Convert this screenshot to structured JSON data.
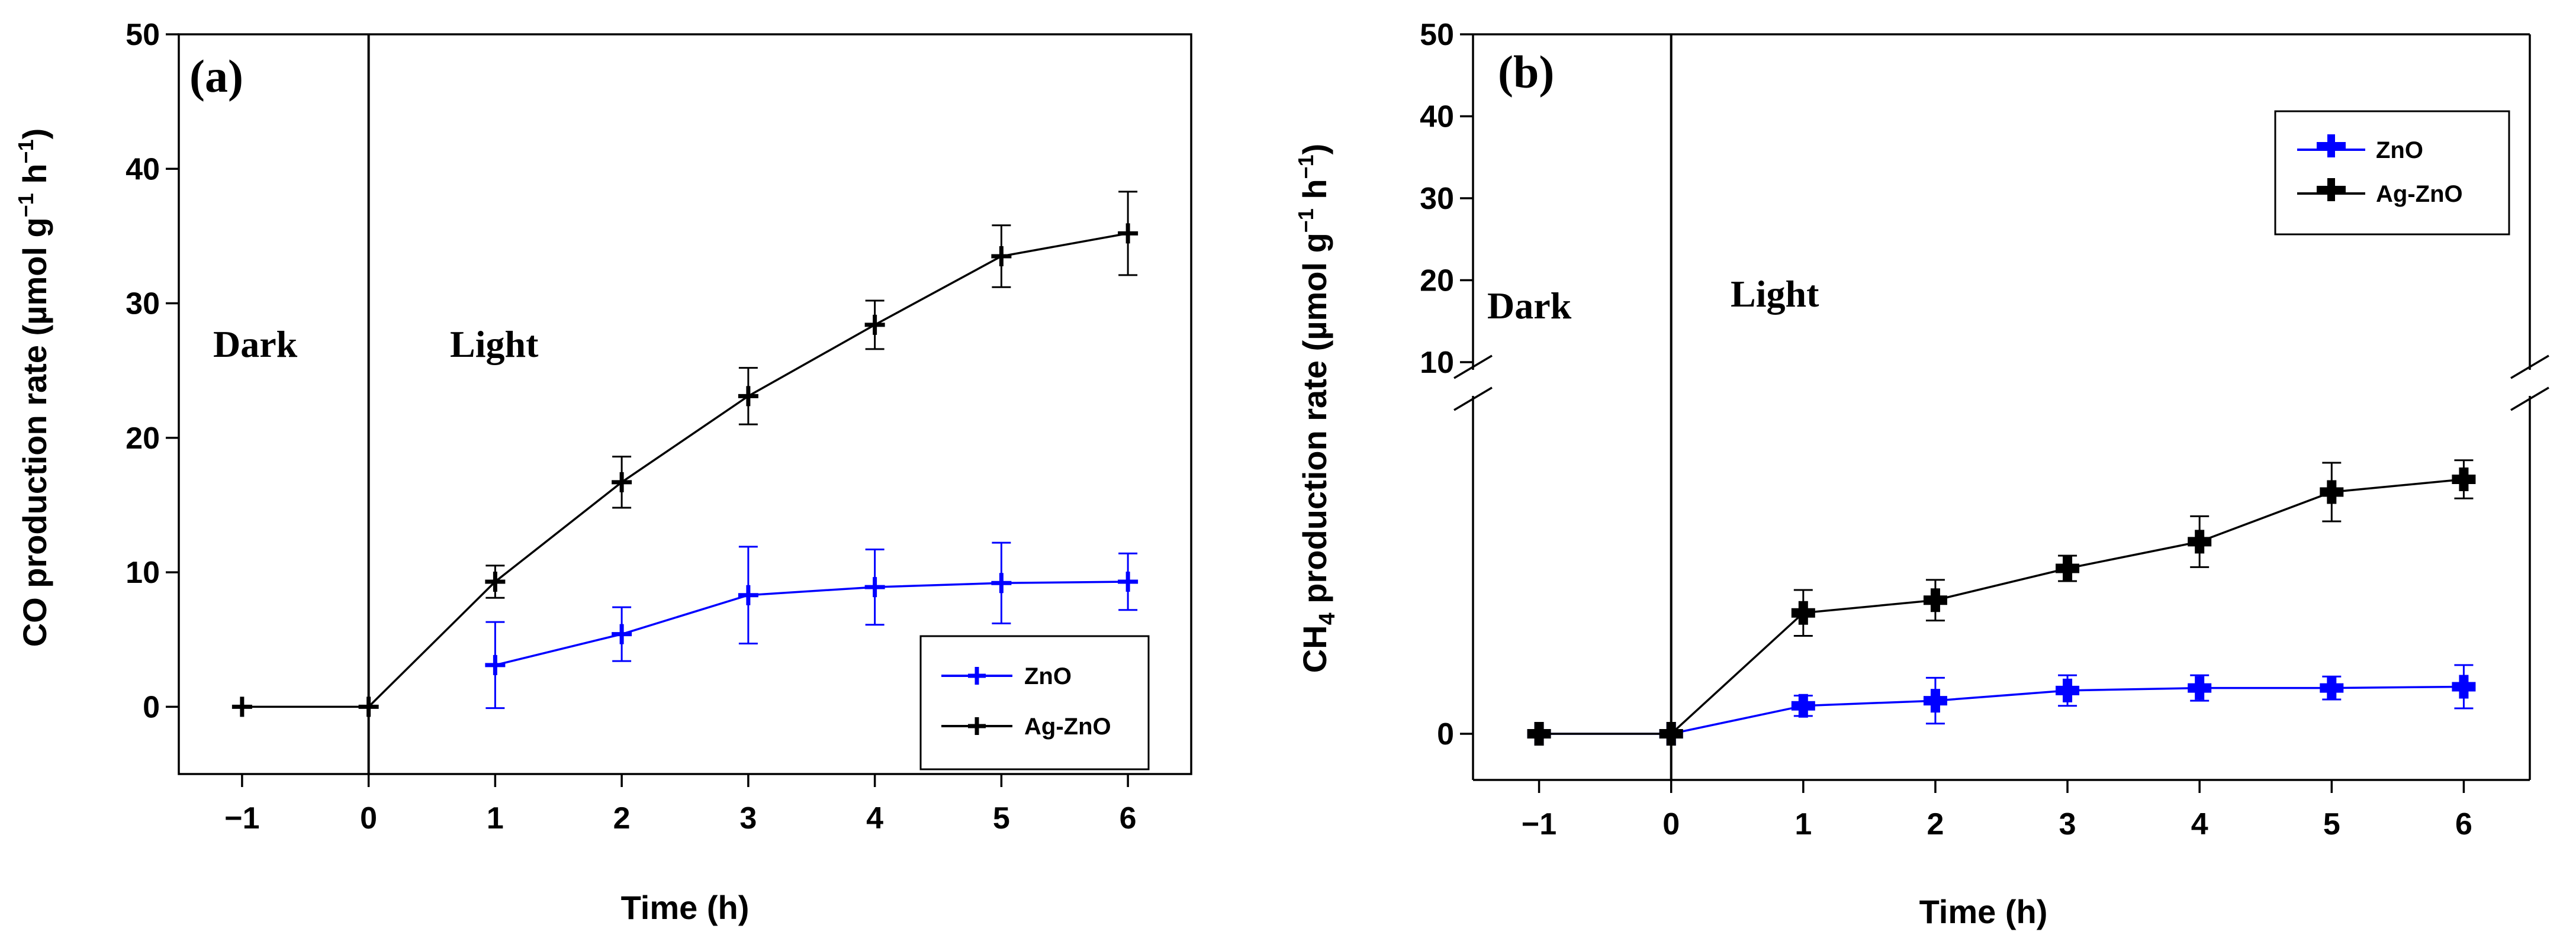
{
  "chart_data": [
    {
      "type": "line",
      "panel_label": "(a)",
      "xlabel": "Time (h)",
      "ylabel_main": "CO production rate (µmol g",
      "ylabel_sup1": "−1",
      "ylabel_mid": " h",
      "ylabel_sup2": "−1",
      "ylabel_end": ")",
      "xlim": [
        -1.5,
        6.5
      ],
      "ylim": [
        -5,
        50
      ],
      "x_ticks": [
        -1,
        0,
        1,
        2,
        3,
        4,
        5,
        6
      ],
      "x_tick_labels": [
        "−1",
        "0",
        "1",
        "2",
        "3",
        "4",
        "5",
        "6"
      ],
      "y_ticks": [
        0,
        10,
        20,
        30,
        40,
        50
      ],
      "y_tick_labels": [
        "0",
        "10",
        "20",
        "30",
        "40",
        "50"
      ],
      "annotations": [
        {
          "text": "Dark",
          "x": -1.0,
          "y": 26.5
        },
        {
          "text": "Light",
          "x": 1.35,
          "y": 26.5
        }
      ],
      "divider_x": 0,
      "legend": {
        "position": "lower-right",
        "entries": [
          "ZnO",
          "Ag-ZnO"
        ]
      },
      "series": [
        {
          "name": "ZnO",
          "color": "#0000ff",
          "marker": "plus",
          "x": [
            1,
            2,
            3,
            4,
            5,
            6
          ],
          "y": [
            3.1,
            5.4,
            8.3,
            8.9,
            9.2,
            9.3
          ],
          "err": [
            3.2,
            2.0,
            3.6,
            2.8,
            3.0,
            2.1
          ]
        },
        {
          "name": "Ag-ZnO",
          "color": "#000000",
          "marker": "plus",
          "x": [
            -1,
            0,
            1,
            2,
            3,
            4,
            5,
            6
          ],
          "y": [
            0,
            0,
            9.3,
            16.7,
            23.1,
            28.4,
            33.5,
            35.2
          ],
          "err": [
            0,
            0,
            1.2,
            1.9,
            2.1,
            1.8,
            2.3,
            3.1
          ]
        }
      ]
    },
    {
      "type": "line",
      "panel_label": "(b)",
      "xlabel": "Time (h)",
      "ylabel_pre": "CH",
      "ylabel_sub": "4",
      "ylabel_main": " production rate (µmol g",
      "ylabel_sup1": "−1",
      "ylabel_mid": " h",
      "ylabel_sup2": "−1",
      "ylabel_end": ")",
      "xlim": [
        -1.5,
        6.5
      ],
      "y_axis_break": true,
      "y_ticks_upper": [
        10,
        20,
        30,
        40,
        50
      ],
      "y_tick_labels_upper": [
        "10",
        "20",
        "30",
        "40",
        "50"
      ],
      "y_ticks_lower": [
        0
      ],
      "y_tick_labels_lower": [
        "0"
      ],
      "x_ticks": [
        -1,
        0,
        1,
        2,
        3,
        4,
        5,
        6
      ],
      "x_tick_labels": [
        "−1",
        "0",
        "1",
        "2",
        "3",
        "4",
        "5",
        "6"
      ],
      "annotations": [
        {
          "text": "Dark",
          "x": -1.0
        },
        {
          "text": "Light",
          "x": 1.15
        }
      ],
      "divider_x": 0,
      "legend": {
        "position": "top-right",
        "entries": [
          "ZnO",
          "Ag-ZnO"
        ]
      },
      "series": [
        {
          "name": "ZnO",
          "color": "#0000ff",
          "marker": "filled-cross",
          "x": [
            -1,
            0,
            1,
            2,
            3,
            4,
            5,
            6
          ],
          "y": [
            0,
            0,
            0.22,
            0.26,
            0.34,
            0.36,
            0.36,
            0.37
          ],
          "err": [
            0,
            0,
            0.08,
            0.18,
            0.12,
            0.1,
            0.09,
            0.17
          ]
        },
        {
          "name": "Ag-ZnO",
          "color": "#000000",
          "marker": "filled-cross",
          "x": [
            -1,
            0,
            1,
            2,
            3,
            4,
            5,
            6
          ],
          "y": [
            0,
            0,
            0.95,
            1.05,
            1.3,
            1.51,
            1.9,
            2.0
          ],
          "err": [
            0,
            0,
            0.18,
            0.16,
            0.1,
            0.2,
            0.23,
            0.15
          ]
        }
      ]
    }
  ]
}
